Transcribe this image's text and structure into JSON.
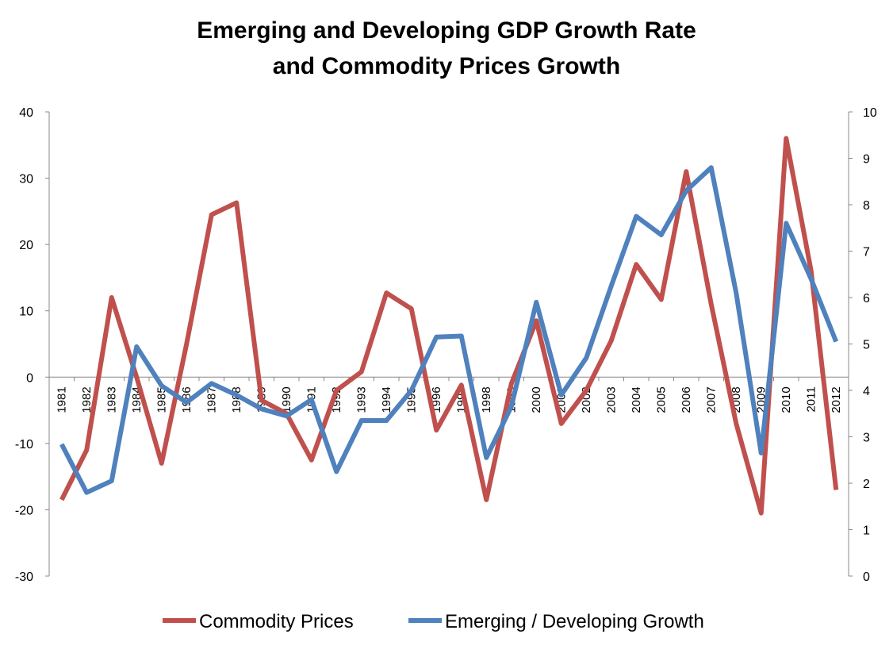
{
  "chart_data": {
    "type": "line",
    "title": [
      "Emerging and Developing GDP Growth Rate",
      "and Commodity Prices Growth"
    ],
    "categories": [
      "1981",
      "1982",
      "1983",
      "1984",
      "1985",
      "1986",
      "1987",
      "1988",
      "1989",
      "1990",
      "1991",
      "1992",
      "1993",
      "1994",
      "1995",
      "1996",
      "1997",
      "1998",
      "1999",
      "2000",
      "2001",
      "2002",
      "2003",
      "2004",
      "2005",
      "2006",
      "2007",
      "2008",
      "2009",
      "2010",
      "2011",
      "2012"
    ],
    "series": [
      {
        "name": "Commodity Prices",
        "color": "#c0504d",
        "values": [
          -18.5,
          -11,
          12,
          0,
          -13,
          5,
          24.5,
          26.3,
          -3.5,
          -5.5,
          -12.5,
          -2,
          0.8,
          12.7,
          10.3,
          -8,
          -1.2,
          -18.5,
          -1,
          8.5,
          -7,
          -2,
          5.5,
          17,
          11.7,
          31,
          11,
          -7,
          -20.5,
          36,
          16,
          -17
        ]
      },
      {
        "name": "Emerging / Developing Growth",
        "color": "#4f81bd",
        "axis": "y2",
        "values": [
          2.84,
          1.8,
          2.05,
          4.94,
          4.1,
          3.74,
          4.15,
          3.9,
          3.6,
          3.45,
          3.8,
          2.25,
          3.35,
          3.35,
          4.0,
          5.15,
          5.17,
          2.55,
          3.65,
          5.9,
          3.9,
          4.7,
          6.25,
          7.75,
          7.35,
          8.3,
          8.8,
          6.1,
          2.65,
          7.6,
          6.4,
          5.05
        ]
      }
    ],
    "ylim": [
      -30,
      40
    ],
    "yticks": [
      -30,
      -20,
      -10,
      0,
      10,
      20,
      30,
      40
    ],
    "y2lim": [
      0,
      10
    ],
    "y2ticks": [
      0,
      1,
      2,
      3,
      4,
      5,
      6,
      7,
      8,
      9,
      10
    ],
    "legend": "bottom"
  }
}
